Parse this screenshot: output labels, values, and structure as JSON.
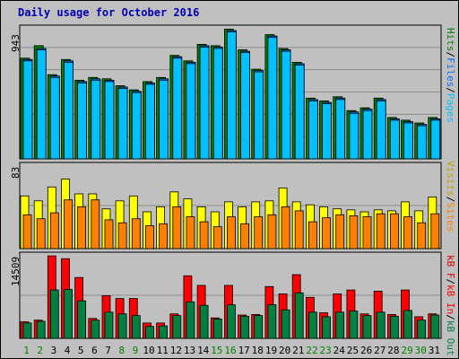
{
  "colors": {
    "title": "#0000b0",
    "pages": "#00c0ff",
    "files": "#0070ff",
    "hits": "#008000",
    "sites": "#ff8000",
    "visits": "#ffff00",
    "kbout": "#008040",
    "kbin": "#ff0000",
    "kbf": "#e00000",
    "weekday_label": "#000000",
    "weekend_label": "#008000",
    "plot_bg": "#c0c0c0",
    "grid": "#8c8c8c"
  },
  "chart_data": {
    "type": "bar",
    "title": "Daily usage for October 2016",
    "categories": [
      "1",
      "2",
      "3",
      "4",
      "5",
      "6",
      "7",
      "8",
      "9",
      "10",
      "11",
      "12",
      "13",
      "14",
      "15",
      "16",
      "17",
      "18",
      "19",
      "20",
      "21",
      "22",
      "23",
      "24",
      "25",
      "26",
      "27",
      "28",
      "29",
      "30",
      "31"
    ],
    "weekend_days": [
      "1",
      "2",
      "8",
      "9",
      "15",
      "16",
      "22",
      "23",
      "29",
      "30"
    ],
    "panels": [
      {
        "name": "hits_files_pages",
        "ymax_label": "943",
        "ymax": 943,
        "right_labels": [
          {
            "text": "Hits",
            "color": "#008000"
          },
          {
            "text": "/",
            "color": "#000000"
          },
          {
            "text": "Files",
            "color": "#0070ff"
          },
          {
            "text": "/",
            "color": "#000000"
          },
          {
            "text": "Pages",
            "color": "#00c0ff"
          }
        ],
        "series": [
          {
            "name": "Hits",
            "values": [
              730,
              820,
              610,
              720,
              570,
              590,
              580,
              530,
              500,
              560,
              590,
              750,
              710,
              830,
              820,
              940,
              790,
              650,
              900,
              800,
              700,
              440,
              420,
              450,
              350,
              370,
              440,
              300,
              280,
              260,
              300
            ]
          },
          {
            "name": "Files",
            "values": [
              720,
              800,
              600,
              710,
              560,
              580,
              570,
              520,
              490,
              550,
              580,
              740,
              700,
              820,
              810,
              930,
              780,
              640,
              890,
              790,
              690,
              430,
              410,
              440,
              340,
              360,
              430,
              290,
              270,
              250,
              290
            ]
          },
          {
            "name": "Pages",
            "values": [
              710,
              790,
              590,
              700,
              550,
              570,
              560,
              510,
              480,
              540,
              570,
              730,
              690,
              810,
              800,
              920,
              770,
              630,
              880,
              780,
              680,
              420,
              400,
              430,
              330,
              350,
              420,
              280,
              260,
              240,
              280
            ]
          }
        ]
      },
      {
        "name": "visits_sites",
        "ymax_label": "83",
        "ymax": 83,
        "right_labels": [
          {
            "text": "Visits",
            "color": "#c0a000"
          },
          {
            "text": "/",
            "color": "#000000"
          },
          {
            "text": "Sites",
            "color": "#ff8000"
          }
        ],
        "series": [
          {
            "name": "Visits",
            "values": [
              53,
              48,
              62,
              70,
              55,
              55,
              40,
              48,
              53,
              37,
              42,
              57,
              50,
              42,
              37,
              47,
              42,
              47,
              48,
              61,
              47,
              44,
              42,
              40,
              39,
              37,
              39,
              38,
              47,
              38,
              52
            ]
          },
          {
            "name": "Sites",
            "values": [
              34,
              30,
              36,
              49,
              42,
              49,
              29,
              26,
              30,
              23,
              25,
              42,
              32,
              27,
              22,
              32,
              25,
              32,
              34,
              42,
              38,
              27,
              31,
              34,
              33,
              32,
              35,
              35,
              32,
              26,
              35
            ]
          }
        ]
      },
      {
        "name": "kbin_kbout",
        "ymax_label": "14509",
        "ymax": 14509,
        "right_labels": [
          {
            "text": "kB F",
            "color": "#e00000"
          },
          {
            "text": "/",
            "color": "#000000"
          },
          {
            "text": "kB In",
            "color": "#ff0000"
          },
          {
            "text": "/",
            "color": "#000000"
          },
          {
            "text": "kB Out",
            "color": "#008040"
          }
        ],
        "series": [
          {
            "name": "kB In",
            "values": [
              2900,
              3200,
              14500,
              14000,
              10700,
              3500,
              7500,
              7000,
              7000,
              2700,
              2700,
              4300,
              11000,
              9300,
              3600,
              9300,
              4100,
              4200,
              9100,
              7800,
              11200,
              7200,
              4500,
              7800,
              8500,
              4300,
              8300,
              4200,
              8500,
              3800,
              4300
            ]
          },
          {
            "name": "kB Out",
            "values": [
              2700,
              3000,
              8500,
              8600,
              6600,
              3200,
              4600,
              4300,
              4000,
              2100,
              2200,
              4000,
              6400,
              5800,
              3400,
              5900,
              3900,
              4000,
              5900,
              5000,
              8000,
              4600,
              3800,
              4600,
              4800,
              4000,
              4600,
              3900,
              4900,
              3200,
              4100
            ]
          }
        ]
      }
    ]
  }
}
